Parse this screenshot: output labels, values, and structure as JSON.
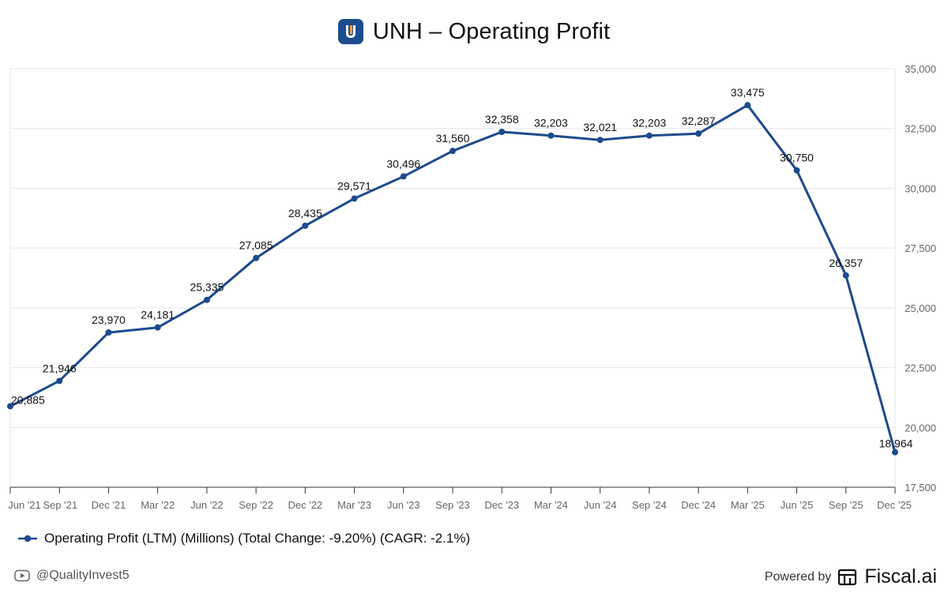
{
  "header": {
    "title": "UNH – Operating Profit",
    "logo_icon": "unh-logo-icon"
  },
  "colors": {
    "series": "#1d4a8c",
    "grid": "#e6e6e6",
    "axis_text": "#666666"
  },
  "chart_data": {
    "type": "line",
    "title": "UNH – Operating Profit",
    "categories": [
      "Jun '21",
      "Sep '21",
      "Dec '21",
      "Mar '22",
      "Jun '22",
      "Sep '22",
      "Dec '22",
      "Mar '23",
      "Jun '23",
      "Sep '23",
      "Dec '23",
      "Mar '24",
      "Jun '24",
      "Sep '24",
      "Dec '24",
      "Mar '25",
      "Jun '25",
      "Sep '25",
      "Dec '25"
    ],
    "series": [
      {
        "name": "Operating Profit (LTM) (Millions) (Total Change: -9.20%) (CAGR: -2.1%)",
        "values": [
          20885,
          21946,
          23970,
          24181,
          25335,
          27085,
          28435,
          29571,
          30496,
          31560,
          32358,
          32203,
          32021,
          32203,
          32287,
          33475,
          30750,
          26357,
          18964
        ],
        "labels": [
          "20,885",
          "21,946",
          "23,970",
          "24,181",
          "25,335",
          "27,085",
          "28,435",
          "29,571",
          "30,496",
          "31,560",
          "32,358",
          "32,203",
          "32,021",
          "32,203",
          "32,287",
          "33,475",
          "30,750",
          "26,357",
          "18,964"
        ]
      }
    ],
    "ylim": [
      17500,
      35000
    ],
    "yticks": [
      17500,
      20000,
      22500,
      25000,
      27500,
      30000,
      32500,
      35000
    ],
    "ytick_labels": [
      "17,500",
      "20,000",
      "22,500",
      "25,000",
      "27,500",
      "30,000",
      "32,500",
      "35,000"
    ],
    "xlabel": "",
    "ylabel": "",
    "grid": true,
    "legend": "bottom-left"
  },
  "legend": {
    "label": "Operating Profit (LTM) (Millions) (Total Change: -9.20%) (CAGR: -2.1%)"
  },
  "footer": {
    "handle": "@QualityInvest5",
    "handle_icon": "youtube-icon",
    "powered_by": "Powered by",
    "brand": "Fiscal.ai",
    "brand_icon": "fiscal-ai-logo-icon"
  }
}
